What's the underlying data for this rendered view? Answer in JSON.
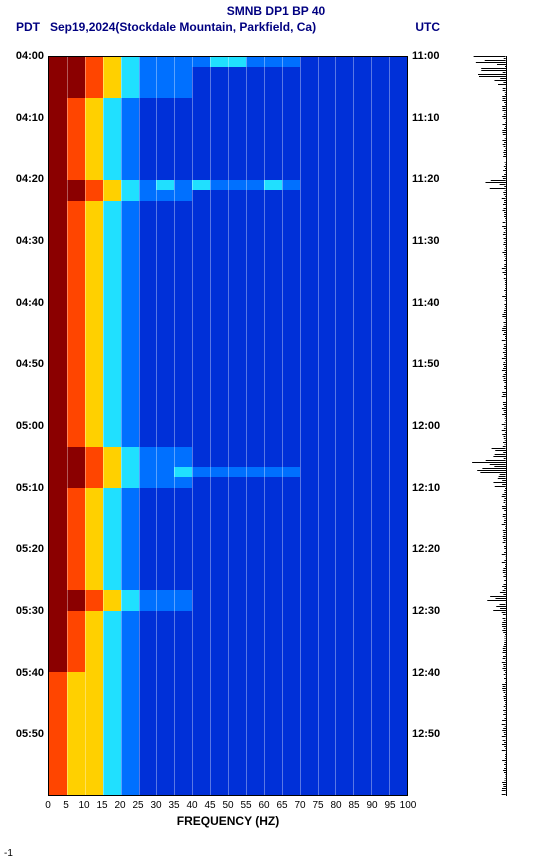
{
  "header": {
    "title": "SMNB DP1 BP 40",
    "left_tz": "PDT",
    "mid": "Sep19,2024(Stockdale Mountain, Parkfield, Ca)",
    "right_tz": "UTC"
  },
  "axes": {
    "xlabel": "FREQUENCY (HZ)",
    "xticks": [
      0,
      5,
      10,
      15,
      20,
      25,
      30,
      35,
      40,
      45,
      50,
      55,
      60,
      65,
      70,
      75,
      80,
      85,
      90,
      95,
      100
    ],
    "xlim": [
      0,
      100
    ],
    "left_times": [
      "04:00",
      "04:10",
      "04:20",
      "04:30",
      "04:40",
      "04:50",
      "05:00",
      "05:10",
      "05:20",
      "05:30",
      "05:40",
      "05:50"
    ],
    "right_times": [
      "11:00",
      "11:10",
      "11:20",
      "11:30",
      "11:40",
      "11:50",
      "12:00",
      "12:10",
      "12:20",
      "12:30",
      "12:40",
      "12:50"
    ]
  },
  "style": {
    "title_color": "#000080",
    "title_fontsize": 12,
    "field_color": "#0030d8",
    "gridline_color": "rgba(255,255,255,0.35)",
    "seismogram_color": "#000000",
    "background": "#ffffff"
  },
  "spectrogram": {
    "type": "spectrogram-heatmap",
    "n_rows": 72,
    "n_bins": 20,
    "palette": {
      "hot": "#8b0000",
      "warm": "#ff4500",
      "yel": "#ffd000",
      "cyan": "#20e0ff",
      "mid": "#0070ff",
      "cool": "#0030d8"
    },
    "low_freq_pattern": [
      "hot",
      "warm",
      "yel",
      "cyan",
      "mid"
    ],
    "bright_rows": [
      0,
      1,
      2,
      3,
      12,
      13,
      38,
      39,
      40,
      41,
      52,
      53
    ],
    "bright_full_rows": [
      0,
      12,
      40
    ],
    "quiet_rows": [
      60,
      61,
      62,
      63,
      64,
      65,
      66,
      67,
      68,
      69,
      70,
      71
    ]
  },
  "seismogram": {
    "type": "waveform",
    "n_points": 370,
    "base_amp": 0.12,
    "bursts": [
      {
        "row": 0,
        "amp": 0.9
      },
      {
        "row": 1,
        "amp": 0.8
      },
      {
        "row": 2,
        "amp": 0.7
      },
      {
        "row": 12,
        "amp": 0.6
      },
      {
        "row": 38,
        "amp": 0.95
      },
      {
        "row": 39,
        "amp": 0.95
      },
      {
        "row": 40,
        "amp": 1.0
      },
      {
        "row": 41,
        "amp": 0.8
      },
      {
        "row": 52,
        "amp": 0.7
      },
      {
        "row": 53,
        "amp": 0.5
      }
    ]
  },
  "footer": {
    "amp_mark": "-1"
  }
}
